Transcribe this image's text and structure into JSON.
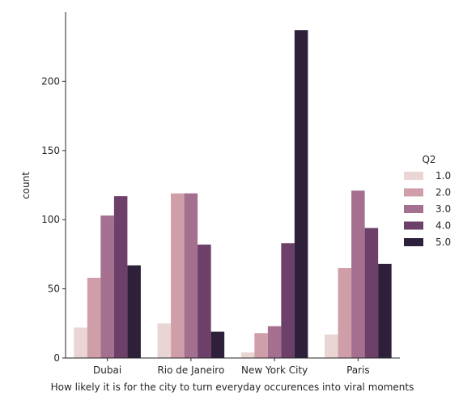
{
  "chart_data": {
    "type": "bar",
    "xlabel": "How likely it is for the city to turn everyday occurences into viral moments",
    "ylabel": "count",
    "categories": [
      "Dubai",
      "Rio de Janeiro",
      "New York City",
      "Paris"
    ],
    "ylim": [
      0,
      250
    ],
    "yticks": [
      0,
      50,
      100,
      150,
      200
    ],
    "legend": {
      "title": "Q2",
      "position": "right"
    },
    "series": [
      {
        "name": "1.0",
        "color": "#e9d5d3",
        "values": [
          22,
          25,
          4,
          17
        ]
      },
      {
        "name": "2.0",
        "color": "#cf9ea8",
        "values": [
          58,
          119,
          18,
          65
        ]
      },
      {
        "name": "3.0",
        "color": "#a56f8f",
        "values": [
          103,
          119,
          23,
          121
        ]
      },
      {
        "name": "4.0",
        "color": "#6c4069",
        "values": [
          117,
          82,
          83,
          94
        ]
      },
      {
        "name": "5.0",
        "color": "#2e1f3a",
        "values": [
          67,
          19,
          237,
          68
        ]
      }
    ]
  }
}
